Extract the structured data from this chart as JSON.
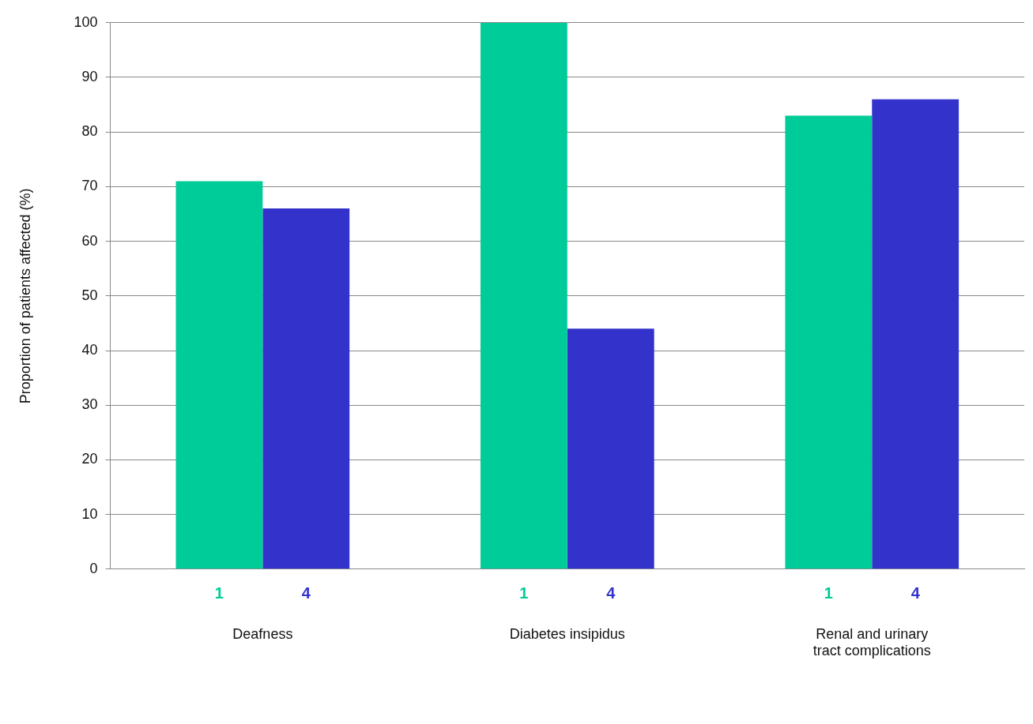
{
  "chart_data": {
    "type": "bar",
    "ylabel": "Proportion of patients affected (%)",
    "categories": [
      "Deafness",
      "Diabetes insipidus",
      "Renal and urinary tract complications"
    ],
    "series": [
      {
        "name": "1",
        "color": "#00cc99",
        "values": [
          71,
          100,
          83
        ]
      },
      {
        "name": "4",
        "color": "#3333cc",
        "values": [
          66,
          44,
          86
        ]
      }
    ],
    "ylim": [
      0,
      100
    ],
    "yticks": [
      0,
      10,
      20,
      30,
      40,
      50,
      60,
      70,
      80,
      90,
      100
    ],
    "grid": "y",
    "legend": false
  }
}
